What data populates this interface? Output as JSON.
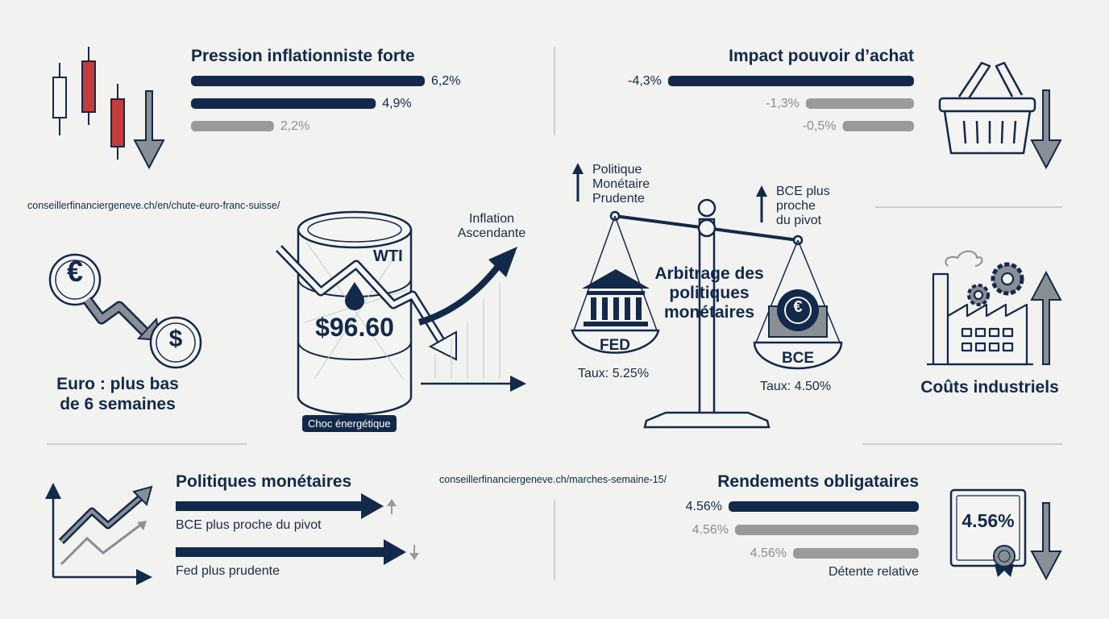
{
  "inflation": {
    "title": "Pression inflationniste forte",
    "bars": [
      {
        "value": 6.2,
        "label": "6,2%",
        "emphasis": "dark"
      },
      {
        "value": 4.9,
        "label": "4,9%",
        "emphasis": "dark"
      },
      {
        "value": 2.2,
        "label": "2,2%",
        "emphasis": "muted"
      }
    ]
  },
  "purchasing": {
    "title": "Impact pouvoir d’achat",
    "bars": [
      {
        "value": -4.3,
        "label": "-4,3%",
        "emphasis": "dark"
      },
      {
        "value": -1.3,
        "label": "-1,3%",
        "emphasis": "muted"
      },
      {
        "value": -0.5,
        "label": "-0,5%",
        "emphasis": "muted"
      }
    ]
  },
  "links": {
    "euro_url": "conseillerfinanciergeneve.ch/en/chute-euro-franc-suisse/",
    "weekly_url": "conseillerfinanciergeneve.ch/marches-semaine-15/"
  },
  "euro": {
    "caption_line1": "Euro : plus bas",
    "caption_line2": "de 6 semaines",
    "from_symbol": "€",
    "to_symbol": "$"
  },
  "oil": {
    "price": "$96.60",
    "barrel_label": "WTI",
    "badge": "Choc énergétique",
    "trend_line1": "Inflation",
    "trend_line2": "Ascendante"
  },
  "policy": {
    "title_line1": "Arbitrage des",
    "title_line2": "politiques",
    "title_line3": "monétaires",
    "fed": {
      "name": "FED",
      "rate": "Taux: 5.25%",
      "note_line1": "Politique",
      "note_line2": "Monétaire",
      "note_line3": "Prudente"
    },
    "ecb": {
      "name": "BCE",
      "rate": "Taux: 4.50%",
      "note_line1": "BCE plus",
      "note_line2": "proche",
      "note_line3": "du pivot",
      "symbol": "€"
    }
  },
  "industry": {
    "caption": "Coûts industriels"
  },
  "monetary": {
    "title": "Politiques monétaires",
    "items": [
      {
        "label": "BCE plus proche du pivot",
        "direction": "up"
      },
      {
        "label": "Fed plus prudente",
        "direction": "down"
      }
    ]
  },
  "bonds": {
    "title": "Rendements obligataires",
    "certificate": "4.56%",
    "bars": [
      {
        "value": 4.56,
        "label": "4.56%",
        "emphasis": "dark"
      },
      {
        "value": 4.56,
        "label": "4.56%",
        "emphasis": "muted"
      },
      {
        "value": 4.56,
        "label": "4.56%",
        "emphasis": "muted"
      }
    ],
    "caption": "Détente relative"
  },
  "colors": {
    "navy": "#13294b",
    "grey": "#9a9a9a",
    "red": "#c33c3c",
    "background": "#f2f2f0"
  }
}
